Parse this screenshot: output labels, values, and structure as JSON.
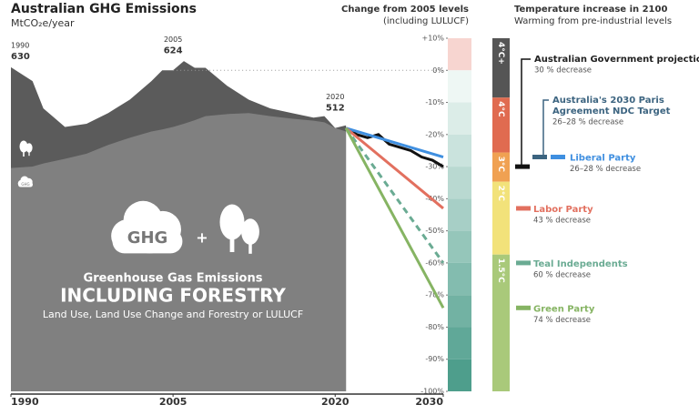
{
  "chart_data": {
    "type": "area",
    "title": "Australian GHG Emissions",
    "subtitle": "MtCO₂e/year",
    "x": [
      1990,
      1992,
      1993,
      1995,
      1997,
      1999,
      2001,
      2003,
      2004,
      2005,
      2006,
      2007,
      2008,
      2010,
      2012,
      2014,
      2016,
      2018,
      2019,
      2020,
      2021
    ],
    "series": [
      {
        "color": "#5b5b5b",
        "values": [
          630,
          603,
          550,
          514,
          520,
          541,
          567,
          603,
          624,
          624,
          642,
          629,
          629,
          594,
          567,
          550,
          541,
          532,
          535,
          512,
          517
        ]
      },
      {
        "color": "#808080",
        "values": [
          434,
          437,
          443,
          452,
          462,
          479,
          493,
          505,
          509,
          514,
          520,
          527,
          535,
          539,
          541,
          535,
          530,
          526,
          523,
          512,
          505
        ]
      }
    ],
    "xlim": [
      1990,
      2030
    ],
    "xticks": [
      1990,
      2005,
      2020,
      2030
    ],
    "ylim": [
      0,
      686.4
    ],
    "y2lim": [
      -100,
      10
    ],
    "y2label": [
      "Change from 2005 levels",
      "(including LULUCF)"
    ],
    "y2ticks": [
      {
        "value": 10,
        "label": "+10%"
      },
      {
        "value": 0,
        "label": "0%"
      },
      {
        "value": -10,
        "label": "-10%"
      },
      {
        "value": -20,
        "label": "-20%"
      },
      {
        "value": -30,
        "label": "-30%"
      },
      {
        "value": -40,
        "label": "-40%"
      },
      {
        "value": -50,
        "label": "-50%"
      },
      {
        "value": -60,
        "label": "-60%"
      },
      {
        "value": -70,
        "label": "-70%"
      },
      {
        "value": -80,
        "label": "-80%"
      },
      {
        "value": -90,
        "label": "-90%"
      },
      {
        "value": -100,
        "label": "-100%"
      }
    ],
    "annotations": [
      {
        "x": 1990,
        "label": "1990",
        "value": 630
      },
      {
        "x": 2005,
        "label": "2005",
        "value": 624
      },
      {
        "x": 2020,
        "label": "2020",
        "value": 512
      }
    ],
    "projections": [
      {
        "name": "Australian Government projections",
        "note": "30 % decrease",
        "color": "#111111",
        "target": -30,
        "x": [
          2021,
          2022,
          2023,
          2024,
          2025,
          2026,
          2027,
          2028,
          2029,
          2030
        ],
        "values": [
          -18,
          -20,
          -21,
          -20,
          -23,
          -24,
          -25,
          -27,
          -28,
          -30
        ]
      },
      {
        "name": [
          "Australia's 2030 Paris",
          "Agreement NDC Target"
        ],
        "note": "26–28 % decrease",
        "color": "#3c6480",
        "target": -27
      },
      {
        "name": "Liberal Party",
        "note": "26–28 % decrease",
        "color": "#3f8fe0",
        "target": -27,
        "x": [
          2021,
          2030
        ],
        "values": [
          -18,
          -27
        ]
      },
      {
        "name": "Labor Party",
        "note": "43 % decrease",
        "color": "#e2705f",
        "target": -43,
        "x": [
          2021,
          2030
        ],
        "values": [
          -18,
          -43
        ]
      },
      {
        "name": "Teal Independents",
        "note": "60 % decrease",
        "color": "#6aab93",
        "target": -60,
        "dashed": true,
        "x": [
          2021,
          2030
        ],
        "values": [
          -18,
          -60
        ]
      },
      {
        "name": "Green Party",
        "note": "74 % decrease",
        "color": "#86b463",
        "target": -74,
        "x": [
          2021,
          2030
        ],
        "values": [
          -18,
          -74
        ]
      }
    ],
    "temperature": {
      "title": "Temperature increase in 2100",
      "subtitle": "Warming from pre-industrial levels",
      "bands": [
        {
          "label": "4°C+",
          "from": 10,
          "to": -8.5,
          "color": "#555555"
        },
        {
          "label": "4°C",
          "from": -8.5,
          "to": -25.6,
          "color": "#e06b50"
        },
        {
          "label": "3°C",
          "from": -25.6,
          "to": -34.7,
          "color": "#f0a152"
        },
        {
          "label": "2°C",
          "from": -34.7,
          "to": -57.4,
          "color": "#f2e27a"
        },
        {
          "label": "1.5°C",
          "from": -57.4,
          "to": -100,
          "color": "#a9c97a"
        }
      ]
    },
    "graphic": {
      "cloud": "GHG",
      "small_cloud": "GHG",
      "plus": "+",
      "line1": "Greenhouse Gas Emissions",
      "line2": "INCLUDING FORESTRY",
      "line3": "Land Use, Land Use Change and Forestry or LULUCF"
    }
  }
}
